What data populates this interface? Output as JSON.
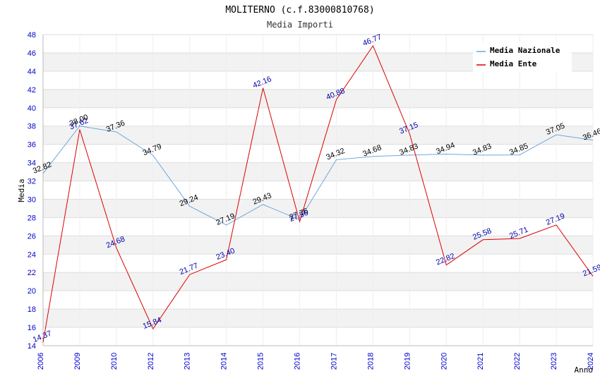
{
  "chart_data": {
    "type": "line",
    "title": "MOLITERNO (c.f.83000810768)",
    "subtitle": "Media Importi",
    "xlabel": "Anno",
    "ylabel": "Media",
    "ylim": [
      14,
      48
    ],
    "yticks": [
      14,
      16,
      18,
      20,
      22,
      24,
      26,
      28,
      30,
      32,
      34,
      36,
      38,
      40,
      42,
      44,
      46,
      48
    ],
    "categories": [
      "2006",
      "2009",
      "2010",
      "2012",
      "2013",
      "2014",
      "2015",
      "2016",
      "2017",
      "2018",
      "2019",
      "2020",
      "2021",
      "2022",
      "2023",
      "2024"
    ],
    "legend_position": "top-right",
    "series": [
      {
        "name": "Media Nazionale",
        "color": "#6ea7e0",
        "values": [
          32.82,
          38.0,
          37.36,
          34.79,
          29.24,
          27.19,
          29.43,
          27.76,
          34.32,
          34.68,
          34.83,
          34.94,
          34.83,
          34.85,
          37.05,
          36.46
        ],
        "labels": [
          "32.82",
          "38.00",
          "37.36",
          "34.79",
          "29.24",
          "27.19",
          "29.43",
          "27.76",
          "34.32",
          "34.68",
          "34.83",
          "34.94",
          "34.83",
          "34.85",
          "37.05",
          "36.46"
        ]
      },
      {
        "name": "Media Ente",
        "color": "#dd0000",
        "values": [
          14.37,
          37.62,
          24.68,
          15.84,
          21.77,
          23.4,
          42.16,
          27.56,
          40.88,
          46.77,
          37.15,
          22.82,
          25.58,
          25.71,
          27.19,
          21.59
        ],
        "labels": [
          "14.37",
          "37.62",
          "24.68",
          "15.84",
          "21.77",
          "23.40",
          "42.16",
          "27.56",
          "40.88",
          "46.77",
          "37.15",
          "22.82",
          "25.58",
          "25.71",
          "27.19",
          "21.59"
        ]
      }
    ]
  }
}
